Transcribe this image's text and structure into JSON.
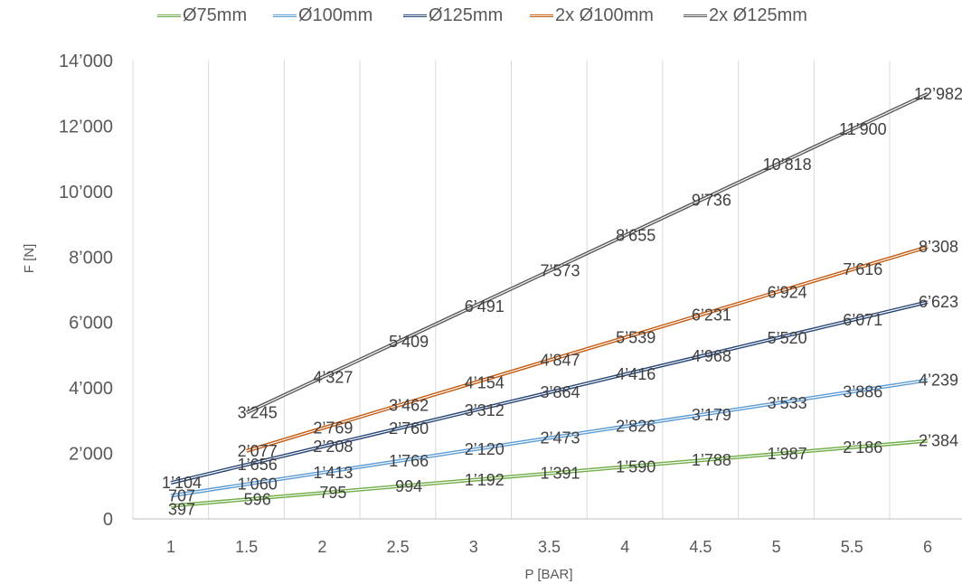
{
  "chart_data": {
    "type": "line",
    "title": "",
    "xlabel": "P [BAR]",
    "ylabel": "F [N]",
    "x": [
      1,
      1.5,
      2,
      2.5,
      3,
      3.5,
      4,
      4.5,
      5,
      5.5,
      6
    ],
    "x_tick_labels": [
      "1",
      "1.5",
      "2",
      "2.5",
      "3",
      "3.5",
      "4",
      "4.5",
      "5",
      "5.5",
      "6"
    ],
    "ylim": [
      0,
      14000
    ],
    "y_tick_labels": [
      "0",
      "2’000",
      "4’000",
      "6’000",
      "8’000",
      "10’000",
      "12’000",
      "14’000"
    ],
    "grid": "vertical",
    "legend_position": "top",
    "series": [
      {
        "name": "Ø75mm",
        "color": "#70ad47",
        "values": [
          397,
          596,
          795,
          994,
          1192,
          1391,
          1590,
          1788,
          1987,
          2186,
          2384
        ],
        "labels": [
          "397",
          "596",
          "795",
          "994",
          "1’192",
          "1’391",
          "1’590",
          "1’788",
          "1’987",
          "2’186",
          "2’384"
        ]
      },
      {
        "name": "Ø100mm",
        "color": "#5b9bd5",
        "values": [
          707,
          1060,
          1413,
          1766,
          2120,
          2473,
          2826,
          3179,
          3533,
          3886,
          4239
        ],
        "labels": [
          "707",
          "1’060",
          "1’413",
          "1’766",
          "2’120",
          "2’473",
          "2’826",
          "3’179",
          "3’533",
          "3’886",
          "4’239"
        ]
      },
      {
        "name": "Ø125mm",
        "color": "#264478",
        "values": [
          1104,
          1656,
          2208,
          2760,
          3312,
          3864,
          4416,
          4968,
          5520,
          6071,
          6623
        ],
        "labels": [
          "1’104",
          "1’656",
          "2’208",
          "2’760",
          "3’312",
          "3’864",
          "4’416",
          "4’968",
          "5’520",
          "6’071",
          "6’623"
        ]
      },
      {
        "name": "2x Ø100mm",
        "color": "#c55a11",
        "values": [
          null,
          2077,
          2769,
          3462,
          4154,
          4847,
          5539,
          6231,
          6924,
          7616,
          8308
        ],
        "labels": [
          null,
          "2’077",
          "2’769",
          "3’462",
          "4’154",
          "4’847",
          "5’539",
          "6’231",
          "6’924",
          "7’616",
          "8’308"
        ]
      },
      {
        "name": "2x Ø125mm",
        "color": "#595959",
        "values": [
          null,
          3245,
          4327,
          5409,
          6491,
          7573,
          8655,
          9736,
          10818,
          11900,
          12982
        ],
        "labels": [
          null,
          "3’245",
          "4’327",
          "5’409",
          "6’491",
          "7’573",
          "8’655",
          "9’736",
          "10’818",
          "11’900",
          "12’982"
        ]
      }
    ]
  }
}
